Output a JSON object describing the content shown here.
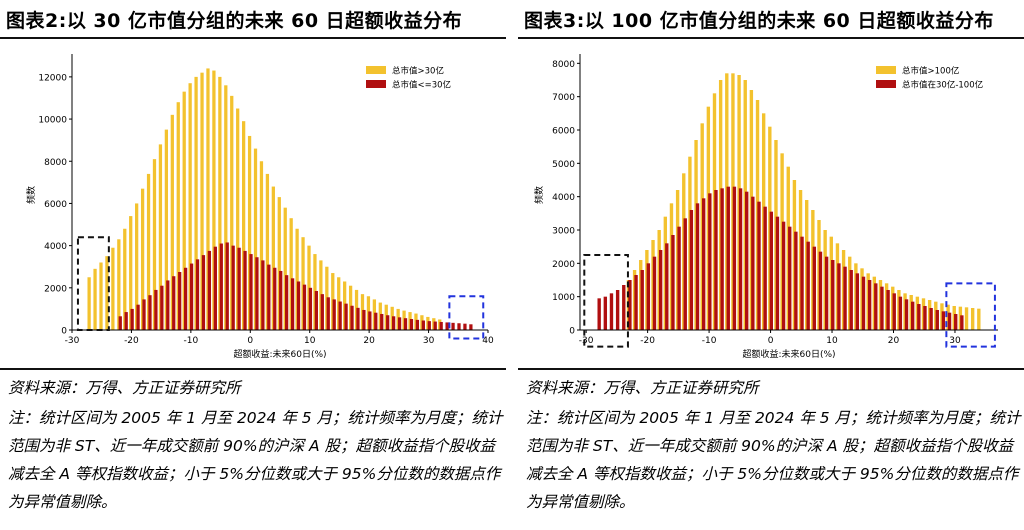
{
  "colors": {
    "gold": "#F3C22E",
    "red": "#B00F10",
    "black_box": "#111111",
    "blue_box": "#2233DD"
  },
  "footer": {
    "source": "资料来源：万得、方正证券研究所",
    "note": "注：统计区间为 2005 年 1 月至 2024 年 5 月；统计频率为月度；统计范围为非 ST、近一年成交额前 90%的沪深 A 股；超额收益指个股收益减去全 A 等权指数收益；小于 5%分位数或大于 95%分位数的数据点作为异常值剔除。"
  },
  "chart_data": [
    {
      "type": "bar",
      "title": "图表2:以 30 亿市值分组的未来 60 日超额收益分布",
      "xlabel": "超额收益:未来60日(%)",
      "ylabel": "频数",
      "xlim": [
        -30,
        40
      ],
      "ylim": [
        0,
        12800
      ],
      "xticks": [
        -30,
        -20,
        -10,
        0,
        10,
        20,
        30,
        40
      ],
      "xtick_labels": [
        "-30",
        "-20",
        "-10",
        "0",
        "10",
        "20",
        "30",
        "40"
      ],
      "yticks": [
        0,
        2000,
        4000,
        6000,
        8000,
        10000,
        12000
      ],
      "ytick_labels": [
        "0",
        "2000",
        "4000",
        "6000",
        "8000",
        "10000",
        "12000"
      ],
      "legend_position": "top-right",
      "grid": false,
      "series": [
        {
          "name": "总市值>30亿",
          "color": "#F3C22E",
          "x": [
            -27,
            -26,
            -25,
            -24,
            -23,
            -22,
            -21,
            -20,
            -19,
            -18,
            -17,
            -16,
            -15,
            -14,
            -13,
            -12,
            -11,
            -10,
            -9,
            -8,
            -7,
            -6,
            -5,
            -4,
            -3,
            -2,
            -1,
            0,
            1,
            2,
            3,
            4,
            5,
            6,
            7,
            8,
            9,
            10,
            11,
            12,
            13,
            14,
            15,
            16,
            17,
            18,
            19,
            20,
            21,
            22,
            23,
            24,
            25,
            26,
            27,
            28,
            29,
            30,
            31,
            32
          ],
          "values": [
            2500,
            2900,
            3200,
            3500,
            3900,
            4300,
            4800,
            5400,
            6000,
            6700,
            7400,
            8100,
            8800,
            9500,
            10200,
            10800,
            11300,
            11700,
            12000,
            12200,
            12400,
            12300,
            12000,
            11600,
            11100,
            10500,
            9900,
            9200,
            8600,
            8000,
            7400,
            6800,
            6300,
            5800,
            5300,
            4800,
            4400,
            4000,
            3600,
            3300,
            3000,
            2700,
            2500,
            2300,
            2100,
            1900,
            1700,
            1600,
            1450,
            1300,
            1200,
            1100,
            1000,
            920,
            850,
            780,
            700,
            620,
            560,
            500
          ]
        },
        {
          "name": "总市值<=30亿",
          "color": "#B00F10",
          "x": [
            -22,
            -21,
            -20,
            -19,
            -18,
            -17,
            -16,
            -15,
            -14,
            -13,
            -12,
            -11,
            -10,
            -9,
            -8,
            -7,
            -6,
            -5,
            -4,
            -3,
            -2,
            -1,
            0,
            1,
            2,
            3,
            4,
            5,
            6,
            7,
            8,
            9,
            10,
            11,
            12,
            13,
            14,
            15,
            16,
            17,
            18,
            19,
            20,
            21,
            22,
            23,
            24,
            25,
            26,
            27,
            28,
            29,
            30,
            31,
            32,
            33,
            34,
            35,
            36,
            37
          ],
          "values": [
            650,
            850,
            1000,
            1200,
            1450,
            1650,
            1900,
            2100,
            2350,
            2550,
            2750,
            2950,
            3150,
            3350,
            3550,
            3750,
            3950,
            4100,
            4150,
            4000,
            3900,
            3750,
            3600,
            3450,
            3300,
            3100,
            2950,
            2800,
            2600,
            2450,
            2300,
            2150,
            2000,
            1850,
            1700,
            1550,
            1450,
            1350,
            1250,
            1150,
            1050,
            950,
            880,
            820,
            760,
            700,
            650,
            600,
            560,
            520,
            480,
            450,
            420,
            400,
            380,
            360,
            340,
            320,
            300,
            270
          ]
        }
      ]
    },
    {
      "type": "bar",
      "title": "图表3:以 100 亿市值分组的未来 60 日超额收益分布",
      "xlabel": "超额收益:未来60日(%)",
      "ylabel": "频数",
      "xlim": [
        -31,
        37
      ],
      "ylim": [
        0,
        8100
      ],
      "xticks": [
        -30,
        -20,
        -10,
        0,
        10,
        20,
        30
      ],
      "xtick_labels": [
        "-30",
        "-20",
        "-10",
        "0",
        "10",
        "20",
        "30"
      ],
      "yticks": [
        0,
        1000,
        2000,
        3000,
        4000,
        5000,
        6000,
        7000,
        8000
      ],
      "ytick_labels": [
        "0",
        "1000",
        "2000",
        "3000",
        "4000",
        "5000",
        "6000",
        "7000",
        "8000"
      ],
      "legend_position": "top-right",
      "grid": false,
      "series": [
        {
          "name": "总市值>100亿",
          "color": "#F3C22E",
          "x": [
            -23,
            -22,
            -21,
            -20,
            -19,
            -18,
            -17,
            -16,
            -15,
            -14,
            -13,
            -12,
            -11,
            -10,
            -9,
            -8,
            -7,
            -6,
            -5,
            -4,
            -3,
            -2,
            -1,
            0,
            1,
            2,
            3,
            4,
            5,
            6,
            7,
            8,
            9,
            10,
            11,
            12,
            13,
            14,
            15,
            16,
            17,
            18,
            19,
            20,
            21,
            22,
            23,
            24,
            25,
            26,
            27,
            28,
            29,
            30,
            31,
            32,
            33,
            34
          ],
          "values": [
            1500,
            1800,
            2100,
            2400,
            2700,
            3000,
            3400,
            3800,
            4200,
            4700,
            5200,
            5700,
            6200,
            6700,
            7100,
            7500,
            7700,
            7700,
            7650,
            7500,
            7200,
            6900,
            6500,
            6100,
            5700,
            5300,
            4900,
            4500,
            4200,
            3900,
            3600,
            3300,
            3000,
            2800,
            2600,
            2400,
            2200,
            2000,
            1850,
            1700,
            1600,
            1500,
            1400,
            1300,
            1200,
            1100,
            1050,
            1000,
            950,
            900,
            850,
            800,
            760,
            720,
            700,
            680,
            660,
            640
          ]
        },
        {
          "name": "总市值在30亿-100亿",
          "color": "#B00F10",
          "x": [
            -28,
            -27,
            -26,
            -25,
            -24,
            -23,
            -22,
            -21,
            -20,
            -19,
            -18,
            -17,
            -16,
            -15,
            -14,
            -13,
            -12,
            -11,
            -10,
            -9,
            -8,
            -7,
            -6,
            -5,
            -4,
            -3,
            -2,
            -1,
            0,
            1,
            2,
            3,
            4,
            5,
            6,
            7,
            8,
            9,
            10,
            11,
            12,
            13,
            14,
            15,
            16,
            17,
            18,
            19,
            20,
            21,
            22,
            23,
            24,
            25,
            26,
            27,
            28,
            29,
            30,
            31
          ],
          "values": [
            950,
            1000,
            1100,
            1200,
            1350,
            1500,
            1650,
            1800,
            2000,
            2200,
            2400,
            2600,
            2850,
            3100,
            3350,
            3600,
            3800,
            3950,
            4100,
            4200,
            4250,
            4300,
            4300,
            4250,
            4150,
            4000,
            3850,
            3700,
            3550,
            3400,
            3250,
            3100,
            2950,
            2800,
            2650,
            2500,
            2350,
            2200,
            2100,
            2000,
            1900,
            1800,
            1700,
            1600,
            1500,
            1400,
            1300,
            1200,
            1100,
            1000,
            920,
            850,
            780,
            720,
            660,
            600,
            560,
            520,
            480,
            440
          ]
        }
      ]
    }
  ]
}
